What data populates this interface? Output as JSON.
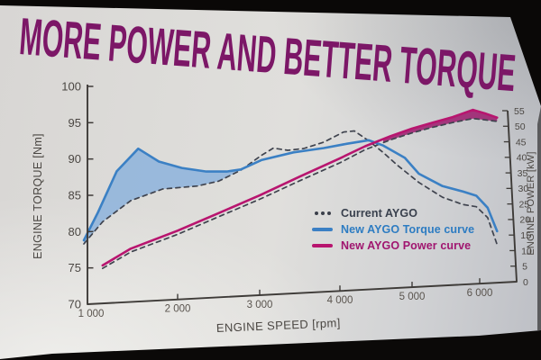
{
  "title": "MORE POWER AND BETTER TORQUE",
  "title_color": "#7c1767",
  "chart_data": {
    "type": "line",
    "xlabel": "ENGINE SPEED [rpm]",
    "ylabel_left": "ENGINE TORQUE [Nm]",
    "ylabel_right": "ENGINE POWER [kW]",
    "axes": {
      "left": {
        "min": 70,
        "max": 100,
        "ticks": [
          70,
          75,
          80,
          85,
          90,
          95,
          100
        ]
      },
      "right": {
        "min": 0,
        "max": 55,
        "ticks": [
          0,
          5,
          10,
          15,
          20,
          25,
          30,
          35,
          40,
          45,
          50,
          55
        ]
      },
      "x": {
        "min": 1000,
        "max": 6400,
        "ticks": [
          {
            "value": 1000,
            "label": "1 000"
          },
          {
            "value": 2000,
            "label": "2 000"
          },
          {
            "value": 3000,
            "label": "3 000"
          },
          {
            "value": 4000,
            "label": "4 000"
          },
          {
            "value": 5000,
            "label": "5 000"
          },
          {
            "value": 6000,
            "label": "6 000"
          }
        ]
      }
    },
    "series": [
      {
        "name": "Current AYGO (torque)",
        "axis": "left",
        "style": "dashed",
        "color": "#3f434e",
        "points": [
          [
            1000,
            78.3
          ],
          [
            1200,
            81.3
          ],
          [
            1500,
            84.2
          ],
          [
            1840,
            85.8
          ],
          [
            2240,
            86.2
          ],
          [
            2500,
            86.9
          ],
          [
            2770,
            88.5
          ],
          [
            3020,
            90.7
          ],
          [
            3170,
            91.8
          ],
          [
            3350,
            91.5
          ],
          [
            3550,
            91.8
          ],
          [
            3800,
            92.8
          ],
          [
            4050,
            94.4
          ],
          [
            4200,
            94.6
          ],
          [
            4400,
            93.1
          ],
          [
            4600,
            91.3
          ],
          [
            4800,
            89.3
          ],
          [
            5100,
            86.6
          ],
          [
            5450,
            84.2
          ],
          [
            5750,
            83.0
          ],
          [
            5950,
            82.6
          ],
          [
            6150,
            80.8
          ],
          [
            6330,
            76.3
          ]
        ]
      },
      {
        "name": "Current AYGO (power)",
        "axis": "right",
        "style": "dashed",
        "color": "#3f434e",
        "points": [
          [
            1200,
            9.2
          ],
          [
            1500,
            13.3
          ],
          [
            2000,
            17.7
          ],
          [
            2500,
            22.3
          ],
          [
            3000,
            27.0
          ],
          [
            3500,
            32.2
          ],
          [
            4000,
            37.4
          ],
          [
            4350,
            41.3
          ],
          [
            4700,
            44.3
          ],
          [
            5000,
            46.5
          ],
          [
            5300,
            48.3
          ],
          [
            5600,
            49.9
          ],
          [
            5900,
            51.3
          ],
          [
            6100,
            51.0
          ],
          [
            6330,
            50.6
          ]
        ]
      },
      {
        "name": "New AYGO Torque curve",
        "axis": "left",
        "style": "solid",
        "color": "#3b80c4",
        "points": [
          [
            1000,
            78.8
          ],
          [
            1150,
            82.6
          ],
          [
            1350,
            88.3
          ],
          [
            1580,
            91.5
          ],
          [
            1800,
            89.7
          ],
          [
            2050,
            88.8
          ],
          [
            2350,
            88.3
          ],
          [
            2600,
            88.3
          ],
          [
            2770,
            88.6
          ],
          [
            3020,
            90.0
          ],
          [
            3420,
            91.2
          ],
          [
            3800,
            91.9
          ],
          [
            4100,
            92.6
          ],
          [
            4400,
            93.2
          ],
          [
            4600,
            92.4
          ],
          [
            4900,
            90.5
          ],
          [
            5100,
            88.0
          ],
          [
            5450,
            86.0
          ],
          [
            5750,
            85.1
          ],
          [
            5950,
            84.4
          ],
          [
            6150,
            82.4
          ],
          [
            6330,
            78.5
          ]
        ]
      },
      {
        "name": "New AYGO Power curve",
        "axis": "right",
        "style": "solid",
        "color": "#b8156f",
        "points": [
          [
            1200,
            10.0
          ],
          [
            1500,
            14.2
          ],
          [
            2000,
            18.7
          ],
          [
            2500,
            23.3
          ],
          [
            3000,
            28.1
          ],
          [
            3500,
            33.4
          ],
          [
            4000,
            38.7
          ],
          [
            4350,
            42.3
          ],
          [
            4700,
            45.4
          ],
          [
            5000,
            47.8
          ],
          [
            5300,
            49.7
          ],
          [
            5600,
            51.6
          ],
          [
            5900,
            54.0
          ],
          [
            6100,
            53.0
          ],
          [
            6330,
            51.8
          ]
        ]
      }
    ],
    "fills": [
      {
        "name": "torque-gain-fill",
        "upper": 2,
        "lower": 0,
        "from": 1000,
        "to": 2770,
        "color": "#8db3dc",
        "opacity": 0.85
      },
      {
        "name": "power-gain-fill",
        "upper": 3,
        "lower": 1,
        "from": 4600,
        "to": 6330,
        "color": "#9c1b6d",
        "opacity": 0.85
      }
    ],
    "legend": [
      {
        "label": "Current AYGO",
        "marker": "dots",
        "color": "#3a3f4a",
        "text_color": "#39404d"
      },
      {
        "label": "New AYGO Torque curve",
        "marker": "bar",
        "color": "#3b80c4",
        "text_color": "#2d7cc2"
      },
      {
        "label": "New AYGO Power curve",
        "marker": "bar",
        "color": "#b8156f",
        "text_color": "#a0156f"
      }
    ],
    "axis_color": "#3e3b38",
    "tick_label_color": "#4b4743",
    "x_tick_label_color": "#5a544e"
  }
}
